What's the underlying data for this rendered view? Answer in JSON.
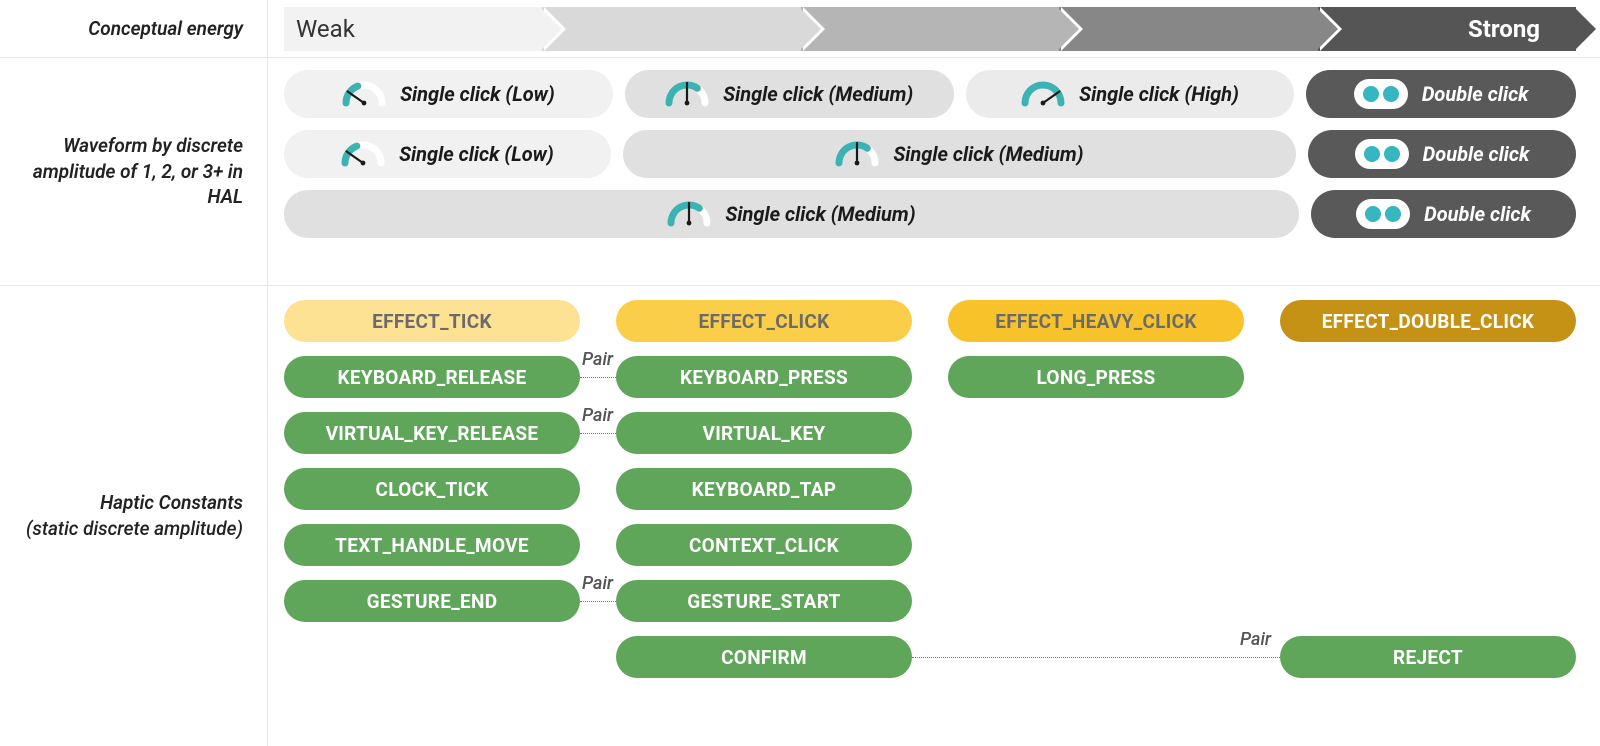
{
  "labels": {
    "conceptual_energy": "Conceptual energy",
    "waveform": "Waveform by discrete amplitude of 1, 2, or 3+ in HAL",
    "haptic_constants": "Haptic Constants",
    "haptic_constants_sub": "(static discrete amplitude)"
  },
  "energy": {
    "weak": "Weak",
    "strong": "Strong",
    "segments": [
      {
        "color": "#f2f2f2"
      },
      {
        "color": "#d9d9d9"
      },
      {
        "color": "#b5b5b5"
      },
      {
        "color": "#878787"
      },
      {
        "color": "#555555"
      }
    ]
  },
  "waveform": {
    "click_low": "Single click (Low)",
    "click_medium": "Single click (Medium)",
    "click_high": "Single click (High)",
    "double_click": "Double click",
    "bg_light": "#f1f1f1",
    "bg_mid": "#e0e0e0",
    "bg_midlt": "#ebebeb",
    "bg_dark": "#595959",
    "text_dark": "#1a1a1a",
    "text_light": "#ffffff",
    "gauge_arc_bg": "#ffffff",
    "gauge_arc_fill": "#3db2b2",
    "gauge_needle": "#1a1a1a",
    "dot_color": "#35b6c0"
  },
  "effects": {
    "tick": {
      "label": "EFFECT_TICK",
      "bg": "#fde293",
      "fg": "#6b6b6b"
    },
    "click": {
      "label": "EFFECT_CLICK",
      "bg": "#fbce4a",
      "fg": "#6b6b6b"
    },
    "heavy": {
      "label": "EFFECT_HEAVY_CLICK",
      "bg": "#f8c22a",
      "fg": "#6b6b6b"
    },
    "double": {
      "label": "EFFECT_DOUBLE_CLICK",
      "bg": "#c69215",
      "fg": "#ffffff"
    }
  },
  "haptic_color": "#5fa65a",
  "haptics": {
    "col1": [
      "KEYBOARD_RELEASE",
      "VIRTUAL_KEY_RELEASE",
      "CLOCK_TICK",
      "TEXT_HANDLE_MOVE",
      "GESTURE_END"
    ],
    "col2": [
      "KEYBOARD_PRESS",
      "VIRTUAL_KEY",
      "KEYBOARD_TAP",
      "CONTEXT_CLICK",
      "GESTURE_START",
      "CONFIRM"
    ],
    "col3": [
      "LONG_PRESS"
    ],
    "col4_reject": "REJECT"
  },
  "pair_word": "Pair"
}
